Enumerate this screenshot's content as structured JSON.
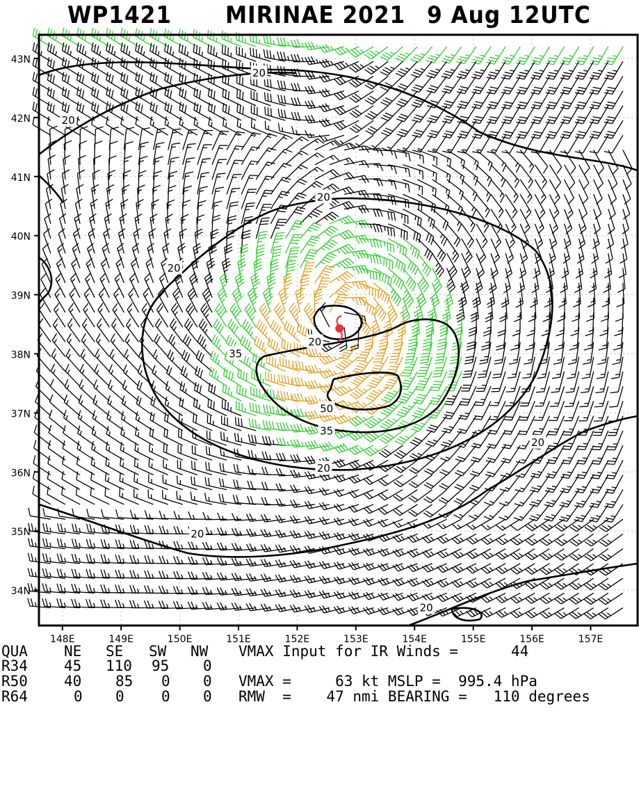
{
  "title": {
    "storm_id": "WP1421",
    "storm_name_year": "MIRINAE 2021",
    "date_time": "9 Aug 12UTC"
  },
  "map": {
    "lon_range": [
      147.6,
      157.8
    ],
    "lat_range": [
      33.4,
      43.4
    ],
    "lat_labels": [
      "43N",
      "42N",
      "41N",
      "40N",
      "39N",
      "38N",
      "37N",
      "36N",
      "35N",
      "34N"
    ],
    "lon_labels": [
      "148E",
      "149E",
      "150E",
      "151E",
      "152E",
      "153E",
      "154E",
      "155E",
      "156E",
      "157E"
    ],
    "center": {
      "lon": 152.72,
      "lat": 38.43
    },
    "contour_labels": [
      {
        "text": "20",
        "lon": 151.35,
        "lat": 42.75
      },
      {
        "text": "20",
        "lon": 148.1,
        "lat": 41.95
      },
      {
        "text": "20",
        "lon": 152.45,
        "lat": 40.65
      },
      {
        "text": "20",
        "lon": 149.9,
        "lat": 39.45
      },
      {
        "text": "20",
        "lon": 152.3,
        "lat": 38.2
      },
      {
        "text": "35",
        "lon": 150.95,
        "lat": 38.0
      },
      {
        "text": "50",
        "lon": 152.5,
        "lat": 37.07
      },
      {
        "text": "35",
        "lon": 152.5,
        "lat": 36.69
      },
      {
        "text": "20",
        "lon": 152.45,
        "lat": 36.06
      },
      {
        "text": "20",
        "lon": 156.1,
        "lat": 36.5
      },
      {
        "text": "20",
        "lon": 150.3,
        "lat": 34.95
      },
      {
        "text": "20",
        "lon": 154.2,
        "lat": 33.7
      }
    ],
    "colors": {
      "lt34": "#000000",
      "ge34": "#33cc33",
      "ge50": "#e0a020",
      "ge64": "#e07030",
      "center": "#ee3333"
    }
  },
  "info": {
    "header": [
      "QUA",
      "NE",
      "SE",
      "SW",
      "NW"
    ],
    "vmax_input_text": "VMAX Input for IR Winds =",
    "vmax_input_value": "44",
    "r34": [
      "R34",
      "45",
      "110",
      "95",
      "0"
    ],
    "r50": [
      "R50",
      "40",
      "85",
      "0",
      "0"
    ],
    "r64": [
      "R64",
      "0",
      "0",
      "0",
      "0"
    ],
    "vmax_line": "VMAX =     63 kt MSLP =  995.4 hPa",
    "rmw_line": "RMW  =    47 nmi BEARING =   110 degrees"
  }
}
